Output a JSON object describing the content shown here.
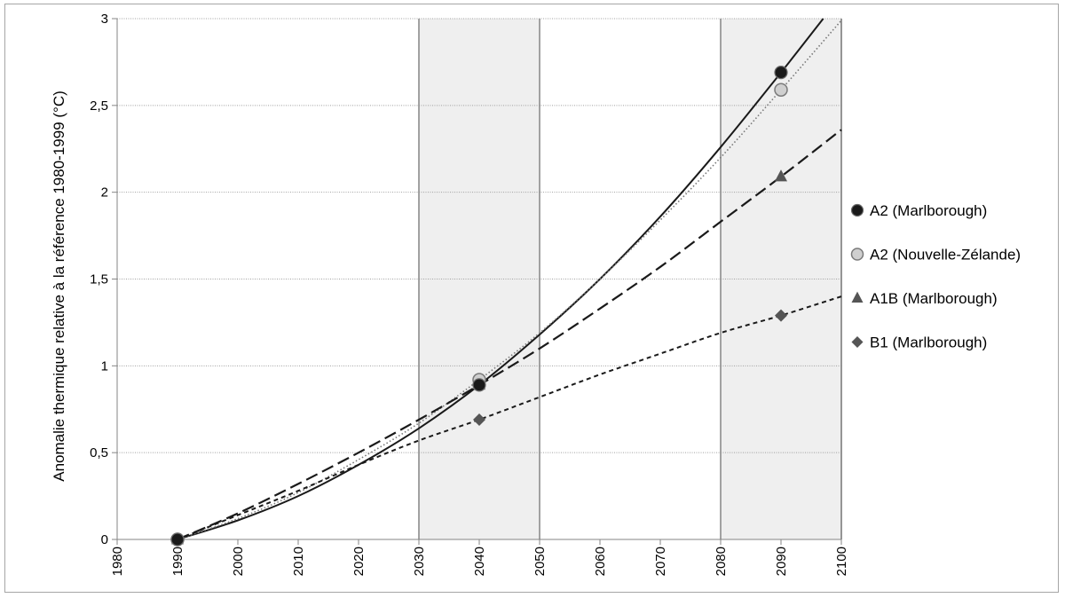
{
  "chart_data": {
    "type": "line",
    "title": "",
    "xlabel": "",
    "ylabel": "Anomalie thermique  relative  à la référence  1980-1999 (°C)",
    "xlim": [
      1980,
      2100
    ],
    "ylim": [
      0,
      3
    ],
    "x_ticks": [
      "1980",
      "1990",
      "2000",
      "2010",
      "2020",
      "2030",
      "2040",
      "2050",
      "2060",
      "2070",
      "2080",
      "2090",
      "2100"
    ],
    "y_ticks": [
      "0",
      "0,5",
      "1",
      "1,5",
      "2",
      "2,5",
      "3"
    ],
    "grid": "horizontal",
    "legend_position": "right",
    "shaded_periods": [
      [
        2030,
        2050
      ],
      [
        2080,
        2100
      ]
    ],
    "series": [
      {
        "name": "A2 (Marlborough)",
        "marker": "circle",
        "color": "#1a1a1a",
        "line_style": "solid",
        "points": [
          {
            "x": 1990,
            "y": 0
          },
          {
            "x": 2040,
            "y": 0.89
          },
          {
            "x": 2090,
            "y": 2.69
          }
        ],
        "curve": [
          [
            1990,
            0
          ],
          [
            2000,
            0.11
          ],
          [
            2010,
            0.25
          ],
          [
            2020,
            0.43
          ],
          [
            2030,
            0.64
          ],
          [
            2040,
            0.89
          ],
          [
            2050,
            1.18
          ],
          [
            2060,
            1.5
          ],
          [
            2070,
            1.86
          ],
          [
            2080,
            2.26
          ],
          [
            2090,
            2.69
          ],
          [
            2097,
            3.0
          ]
        ]
      },
      {
        "name": "A2 (Nouvelle-Zélande)",
        "marker": "circle-light",
        "color": "#c8c8c8",
        "line_style": "dotted",
        "points": [
          {
            "x": 1990,
            "y": 0
          },
          {
            "x": 2040,
            "y": 0.92
          },
          {
            "x": 2090,
            "y": 2.59
          }
        ],
        "curve": [
          [
            1990,
            0
          ],
          [
            2000,
            0.12
          ],
          [
            2010,
            0.27
          ],
          [
            2020,
            0.46
          ],
          [
            2030,
            0.67
          ],
          [
            2040,
            0.92
          ],
          [
            2050,
            1.19
          ],
          [
            2060,
            1.5
          ],
          [
            2070,
            1.84
          ],
          [
            2080,
            2.2
          ],
          [
            2090,
            2.59
          ],
          [
            2100,
            2.99
          ]
        ]
      },
      {
        "name": "A1B (Marlborough)",
        "marker": "triangle",
        "color": "#555555",
        "line_style": "long-dash",
        "points": [
          {
            "x": 1990,
            "y": 0
          },
          {
            "x": 2040,
            "y": 0.89
          },
          {
            "x": 2090,
            "y": 2.09
          }
        ],
        "curve": [
          [
            1990,
            0
          ],
          [
            2000,
            0.15
          ],
          [
            2010,
            0.32
          ],
          [
            2020,
            0.5
          ],
          [
            2030,
            0.69
          ],
          [
            2040,
            0.89
          ],
          [
            2050,
            1.1
          ],
          [
            2060,
            1.33
          ],
          [
            2070,
            1.57
          ],
          [
            2080,
            1.83
          ],
          [
            2090,
            2.09
          ],
          [
            2100,
            2.36
          ]
        ]
      },
      {
        "name": "B1 (Marlborough)",
        "marker": "diamond",
        "color": "#555555",
        "line_style": "short-dash",
        "points": [
          {
            "x": 1990,
            "y": 0
          },
          {
            "x": 2040,
            "y": 0.69
          },
          {
            "x": 2090,
            "y": 1.29
          }
        ],
        "curve": [
          [
            1990,
            0
          ],
          [
            2000,
            0.14
          ],
          [
            2010,
            0.28
          ],
          [
            2020,
            0.43
          ],
          [
            2030,
            0.57
          ],
          [
            2040,
            0.69
          ],
          [
            2050,
            0.82
          ],
          [
            2060,
            0.95
          ],
          [
            2070,
            1.07
          ],
          [
            2080,
            1.19
          ],
          [
            2090,
            1.29
          ],
          [
            2100,
            1.4
          ]
        ]
      }
    ]
  }
}
